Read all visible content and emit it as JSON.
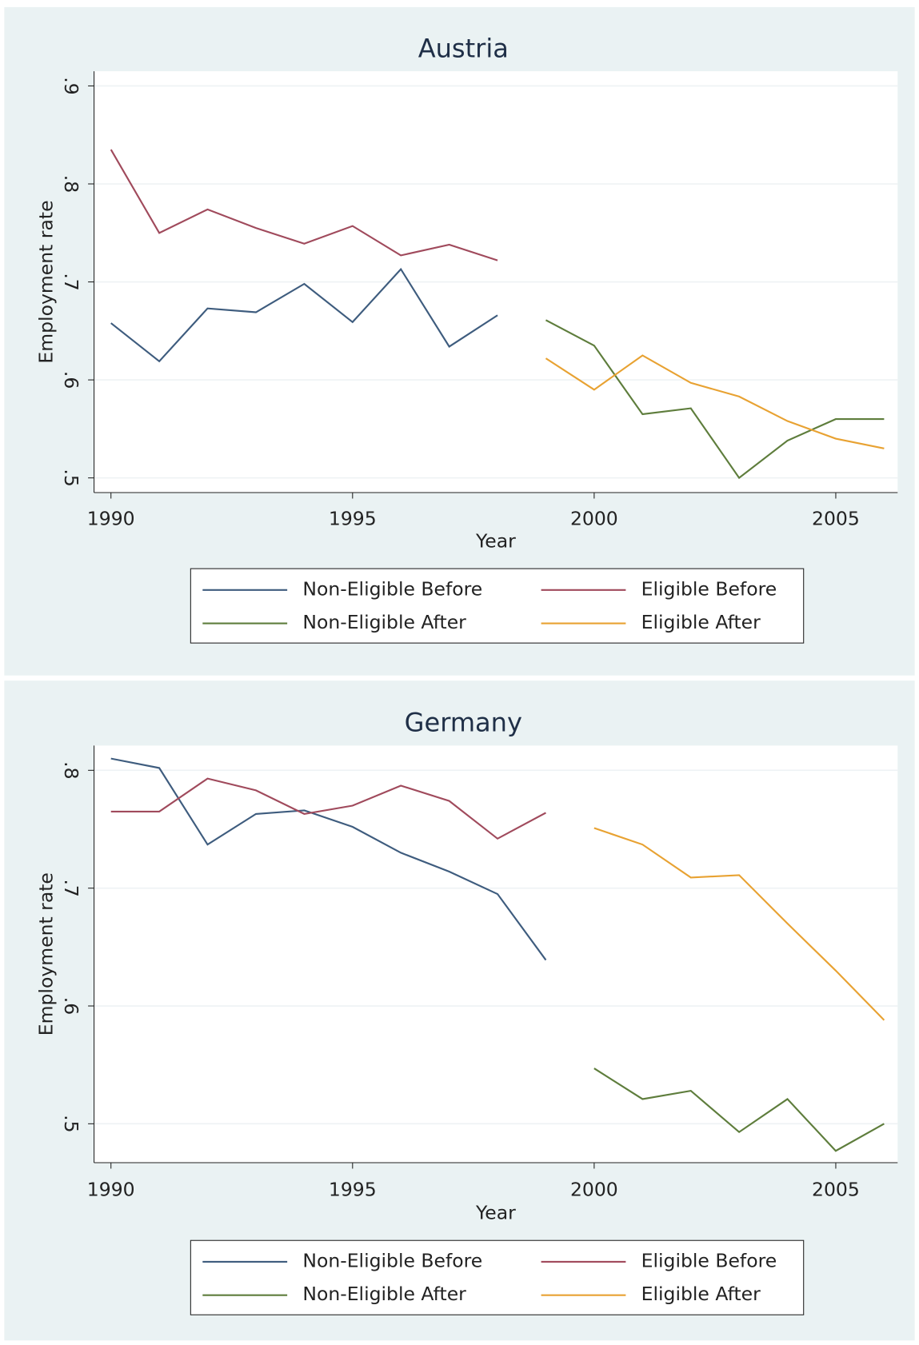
{
  "chart_data": [
    {
      "type": "line",
      "title": "Austria",
      "x_label": "Year",
      "y_label": "Employment rate",
      "grid": true,
      "x": [
        1990,
        1991,
        1992,
        1993,
        1994,
        1995,
        1996,
        1997,
        1998,
        1999,
        2000,
        2001,
        2002,
        2003,
        2004,
        2005,
        2006
      ],
      "series": [
        {
          "name": "Non-Eligible Before",
          "color": "#3e5c7e",
          "values": [
            0.658,
            0.619,
            0.673,
            0.669,
            0.698,
            0.659,
            0.713,
            0.634,
            0.666,
            null,
            null,
            null,
            null,
            null,
            null,
            null,
            null
          ]
        },
        {
          "name": "Eligible Before",
          "color": "#a04a5c",
          "values": [
            0.835,
            0.75,
            0.774,
            0.755,
            0.739,
            0.757,
            0.727,
            0.738,
            0.722,
            null,
            null,
            null,
            null,
            null,
            null,
            null,
            null
          ]
        },
        {
          "name": "Non-Eligible After",
          "color": "#5e7d3c",
          "values": [
            null,
            null,
            null,
            null,
            null,
            null,
            null,
            null,
            null,
            0.661,
            0.635,
            0.565,
            0.571,
            0.5,
            0.538,
            0.56,
            0.56
          ]
        },
        {
          "name": "Eligible After",
          "color": "#e8a232",
          "values": [
            null,
            null,
            null,
            null,
            null,
            null,
            null,
            null,
            null,
            0.622,
            0.59,
            0.625,
            0.597,
            0.583,
            0.558,
            0.54,
            0.53
          ]
        }
      ],
      "xlim": [
        1989.65,
        2006.28
      ],
      "ylim": [
        0.485,
        0.915
      ],
      "xticks": [
        1990,
        1995,
        2000,
        2005
      ],
      "yticks": [
        {
          "value": 0.5,
          "label": ".5"
        },
        {
          "value": 0.6,
          "label": ".6"
        },
        {
          "value": 0.7,
          "label": ".7"
        },
        {
          "value": 0.8,
          "label": ".8"
        },
        {
          "value": 0.9,
          "label": ".9"
        }
      ]
    },
    {
      "type": "line",
      "title": "Germany",
      "x_label": "Year",
      "y_label": "Employment rate",
      "grid": true,
      "x": [
        1990,
        1991,
        1992,
        1993,
        1994,
        1995,
        1996,
        1997,
        1998,
        1999,
        2000,
        2001,
        2002,
        2003,
        2004,
        2005,
        2006
      ],
      "series": [
        {
          "name": "Non-Eligible Before",
          "color": "#3e5c7e",
          "values": [
            0.81,
            0.802,
            0.737,
            0.763,
            0.766,
            0.752,
            0.73,
            0.714,
            0.695,
            0.639,
            null,
            null,
            null,
            null,
            null,
            null,
            null
          ]
        },
        {
          "name": "Eligible Before",
          "color": "#a04a5c",
          "values": [
            0.765,
            0.765,
            0.793,
            0.783,
            0.763,
            0.77,
            0.787,
            0.774,
            0.742,
            0.764,
            null,
            null,
            null,
            null,
            null,
            null,
            null
          ]
        },
        {
          "name": "Non-Eligible After",
          "color": "#5e7d3c",
          "values": [
            null,
            null,
            null,
            null,
            null,
            null,
            null,
            null,
            null,
            null,
            0.547,
            0.521,
            0.528,
            0.493,
            0.521,
            0.477,
            0.5
          ]
        },
        {
          "name": "Eligible After",
          "color": "#e8a232",
          "values": [
            null,
            null,
            null,
            null,
            null,
            null,
            null,
            null,
            null,
            null,
            0.751,
            0.737,
            0.709,
            0.711,
            0.67,
            0.63,
            0.588
          ]
        }
      ],
      "xlim": [
        1989.65,
        2006.28
      ],
      "ylim": [
        0.467,
        0.821
      ],
      "xticks": [
        1990,
        1995,
        2000,
        2005
      ],
      "yticks": [
        {
          "value": 0.5,
          "label": ".5"
        },
        {
          "value": 0.6,
          "label": ".6"
        },
        {
          "value": 0.7,
          "label": ".7"
        },
        {
          "value": 0.8,
          "label": ".8"
        }
      ]
    }
  ]
}
